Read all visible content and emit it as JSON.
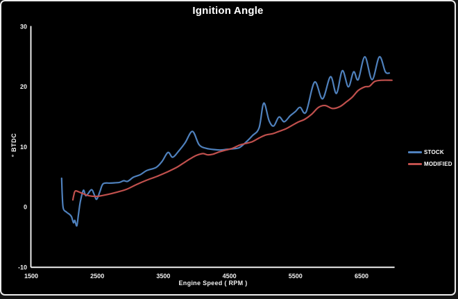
{
  "chart_data": {
    "type": "line",
    "title": "Ignition Angle",
    "xlabel": "Engine Speed ( RPM )",
    "ylabel": "° BTDC",
    "xlim": [
      1500,
      7000
    ],
    "ylim": [
      -10,
      30
    ],
    "x_ticks": [
      1500,
      2500,
      3500,
      4500,
      5500,
      6500
    ],
    "y_ticks": [
      30,
      20,
      10,
      0,
      -10
    ],
    "grid": false,
    "legend_position": "right-middle",
    "background_color": "#000000",
    "axis_color": "#ffffff",
    "text_color": "#f2f2f2",
    "series": [
      {
        "name": "STOCK",
        "color": "#4f81bd",
        "points": [
          [
            1960,
            4.8
          ],
          [
            1970,
            2.0
          ],
          [
            1985,
            -0.2
          ],
          [
            2030,
            -0.8
          ],
          [
            2080,
            -1.2
          ],
          [
            2110,
            -1.6
          ],
          [
            2140,
            -2.6
          ],
          [
            2160,
            -2.2
          ],
          [
            2190,
            -3.1
          ],
          [
            2215,
            -1.2
          ],
          [
            2245,
            1.0
          ],
          [
            2290,
            2.8
          ],
          [
            2330,
            1.9
          ],
          [
            2410,
            2.9
          ],
          [
            2450,
            2.2
          ],
          [
            2490,
            1.3
          ],
          [
            2540,
            2.6
          ],
          [
            2590,
            3.9
          ],
          [
            2700,
            4.0
          ],
          [
            2830,
            4.1
          ],
          [
            2900,
            4.4
          ],
          [
            2960,
            4.3
          ],
          [
            3050,
            5.0
          ],
          [
            3150,
            5.4
          ],
          [
            3250,
            6.1
          ],
          [
            3390,
            6.6
          ],
          [
            3480,
            7.6
          ],
          [
            3570,
            9.1
          ],
          [
            3640,
            8.3
          ],
          [
            3730,
            9.3
          ],
          [
            3830,
            10.7
          ],
          [
            3940,
            12.6
          ],
          [
            4040,
            10.4
          ],
          [
            4140,
            9.8
          ],
          [
            4250,
            9.6
          ],
          [
            4350,
            9.5
          ],
          [
            4450,
            9.6
          ],
          [
            4550,
            9.7
          ],
          [
            4650,
            9.9
          ],
          [
            4750,
            10.8
          ],
          [
            4850,
            11.9
          ],
          [
            4950,
            13.2
          ],
          [
            5020,
            17.3
          ],
          [
            5100,
            14.4
          ],
          [
            5170,
            13.5
          ],
          [
            5250,
            15.0
          ],
          [
            5330,
            14.2
          ],
          [
            5420,
            15.2
          ],
          [
            5500,
            15.9
          ],
          [
            5570,
            16.6
          ],
          [
            5660,
            15.8
          ],
          [
            5790,
            20.8
          ],
          [
            5910,
            18.0
          ],
          [
            6030,
            21.7
          ],
          [
            6120,
            18.9
          ],
          [
            6210,
            22.7
          ],
          [
            6300,
            20.0
          ],
          [
            6380,
            22.5
          ],
          [
            6450,
            21.2
          ],
          [
            6550,
            25.0
          ],
          [
            6660,
            21.2
          ],
          [
            6770,
            25.0
          ],
          [
            6860,
            22.5
          ],
          [
            6920,
            22.3
          ]
        ]
      },
      {
        "name": "MODIFIED",
        "color": "#c0504d",
        "points": [
          [
            2130,
            1.2
          ],
          [
            2145,
            2.0
          ],
          [
            2170,
            2.7
          ],
          [
            2250,
            2.4
          ],
          [
            2370,
            1.9
          ],
          [
            2500,
            1.8
          ],
          [
            2650,
            2.1
          ],
          [
            2800,
            2.5
          ],
          [
            2950,
            3.0
          ],
          [
            3100,
            3.8
          ],
          [
            3250,
            4.5
          ],
          [
            3400,
            5.1
          ],
          [
            3550,
            5.8
          ],
          [
            3700,
            6.6
          ],
          [
            3800,
            7.3
          ],
          [
            3900,
            8.0
          ],
          [
            4000,
            8.6
          ],
          [
            4100,
            8.9
          ],
          [
            4170,
            8.7
          ],
          [
            4250,
            8.8
          ],
          [
            4350,
            9.2
          ],
          [
            4450,
            9.5
          ],
          [
            4550,
            9.8
          ],
          [
            4650,
            10.3
          ],
          [
            4750,
            10.6
          ],
          [
            4850,
            10.9
          ],
          [
            4950,
            11.5
          ],
          [
            5050,
            12.0
          ],
          [
            5150,
            12.2
          ],
          [
            5250,
            12.6
          ],
          [
            5350,
            13.0
          ],
          [
            5450,
            13.6
          ],
          [
            5550,
            14.2
          ],
          [
            5640,
            14.6
          ],
          [
            5740,
            15.4
          ],
          [
            5850,
            16.6
          ],
          [
            5950,
            16.9
          ],
          [
            6060,
            16.4
          ],
          [
            6170,
            16.7
          ],
          [
            6270,
            17.5
          ],
          [
            6360,
            18.3
          ],
          [
            6450,
            19.4
          ],
          [
            6550,
            20.0
          ],
          [
            6620,
            20.1
          ],
          [
            6700,
            20.9
          ],
          [
            6800,
            21.1
          ],
          [
            6960,
            21.1
          ]
        ]
      }
    ]
  }
}
